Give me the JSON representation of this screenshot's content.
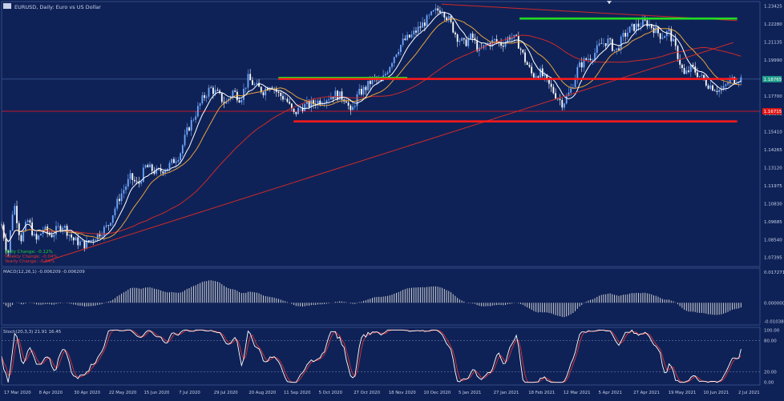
{
  "symbol_header": {
    "text": "EURUSD, Daily:  Euro vs US Dollar"
  },
  "colors": {
    "background": "#0f2257",
    "grid": "#3a5590",
    "candle_up": "#6fa8ff",
    "candle_down": "#ffffff",
    "ma_fast": "#ffffff",
    "ma_mid": "#e8a33d",
    "ma_slow": "#cc2a2a",
    "trendline": "#cc2a2a",
    "support_red": "#ff1a1a",
    "resistance_green": "#22dd22",
    "macd": "#d0d0d0",
    "stoch_main": "#ffffff",
    "stoch_signal": "#e03030",
    "axis_text": "#c8d0e8",
    "price_tag": "#1e9c8a",
    "red_tag": "#e01818"
  },
  "chart_data": {
    "type": "candlestick",
    "main": {
      "y_ticks": [
        "1.23425",
        "1.22280",
        "1.21135",
        "1.19990",
        "1.18845",
        "1.17700",
        "1.16555",
        "1.15410",
        "1.14265",
        "1.13120",
        "1.11975",
        "1.10830",
        "1.09685",
        "1.08540",
        "1.07395"
      ],
      "ylim": [
        1.0682,
        1.2371
      ],
      "current_price_label": "1.18765",
      "red_level_label": "1.16715",
      "levels": [
        {
          "color": "resistance_green",
          "value": 1.2263,
          "from": 0.683,
          "to": 0.97
        },
        {
          "color": "resistance_green",
          "value": 1.1885,
          "from": 0.365,
          "to": 0.535
        },
        {
          "color": "support_red",
          "value": 1.1878,
          "from": 0.365,
          "to": 0.97
        },
        {
          "color": "support_red",
          "value": 1.1607,
          "from": 0.385,
          "to": 0.97
        }
      ],
      "thin_line_value": 1.1672,
      "trendlines": [
        {
          "from": [
            0.055,
            1.071
          ],
          "to": [
            0.965,
            1.211
          ]
        },
        {
          "from": [
            0.58,
            1.2355
          ],
          "to": [
            0.97,
            1.225
          ]
        }
      ],
      "price_path": [
        [
          0.0,
          1.095
        ],
        [
          0.008,
          1.075
        ],
        [
          0.016,
          1.11
        ],
        [
          0.025,
          1.085
        ],
        [
          0.035,
          1.098
        ],
        [
          0.045,
          1.084
        ],
        [
          0.055,
          1.092
        ],
        [
          0.065,
          1.088
        ],
        [
          0.08,
          1.095
        ],
        [
          0.095,
          1.085
        ],
        [
          0.11,
          1.082
        ],
        [
          0.125,
          1.088
        ],
        [
          0.14,
          1.094
        ],
        [
          0.155,
          1.112
        ],
        [
          0.17,
          1.125
        ],
        [
          0.18,
          1.12
        ],
        [
          0.19,
          1.132
        ],
        [
          0.205,
          1.128
        ],
        [
          0.22,
          1.132
        ],
        [
          0.235,
          1.14
        ],
        [
          0.245,
          1.155
        ],
        [
          0.255,
          1.165
        ],
        [
          0.265,
          1.175
        ],
        [
          0.275,
          1.182
        ],
        [
          0.285,
          1.178
        ],
        [
          0.295,
          1.172
        ],
        [
          0.305,
          1.18
        ],
        [
          0.315,
          1.175
        ],
        [
          0.325,
          1.188
        ],
        [
          0.335,
          1.183
        ],
        [
          0.345,
          1.18
        ],
        [
          0.355,
          1.185
        ],
        [
          0.365,
          1.178
        ],
        [
          0.375,
          1.175
        ],
        [
          0.385,
          1.165
        ],
        [
          0.395,
          1.17
        ],
        [
          0.41,
          1.172
        ],
        [
          0.425,
          1.175
        ],
        [
          0.44,
          1.178
        ],
        [
          0.455,
          1.175
        ],
        [
          0.46,
          1.165
        ],
        [
          0.47,
          1.178
        ],
        [
          0.48,
          1.182
        ],
        [
          0.49,
          1.188
        ],
        [
          0.5,
          1.185
        ],
        [
          0.51,
          1.195
        ],
        [
          0.52,
          1.205
        ],
        [
          0.53,
          1.212
        ],
        [
          0.54,
          1.215
        ],
        [
          0.55,
          1.22
        ],
        [
          0.56,
          1.225
        ],
        [
          0.57,
          1.23
        ],
        [
          0.58,
          1.233
        ],
        [
          0.59,
          1.225
        ],
        [
          0.6,
          1.215
        ],
        [
          0.61,
          1.21
        ],
        [
          0.62,
          1.215
        ],
        [
          0.63,
          1.205
        ],
        [
          0.64,
          1.21
        ],
        [
          0.65,
          1.212
        ],
        [
          0.66,
          1.21
        ],
        [
          0.67,
          1.215
        ],
        [
          0.68,
          1.212
        ],
        [
          0.69,
          1.2
        ],
        [
          0.7,
          1.19
        ],
        [
          0.71,
          1.192
        ],
        [
          0.72,
          1.185
        ],
        [
          0.73,
          1.178
        ],
        [
          0.74,
          1.172
        ],
        [
          0.75,
          1.18
        ],
        [
          0.76,
          1.195
        ],
        [
          0.77,
          1.2
        ],
        [
          0.78,
          1.203
        ],
        [
          0.79,
          1.21
        ],
        [
          0.8,
          1.212
        ],
        [
          0.81,
          1.205
        ],
        [
          0.82,
          1.215
        ],
        [
          0.83,
          1.22
        ],
        [
          0.84,
          1.222
        ],
        [
          0.85,
          1.224
        ],
        [
          0.86,
          1.22
        ],
        [
          0.87,
          1.215
        ],
        [
          0.88,
          1.218
        ],
        [
          0.89,
          1.205
        ],
        [
          0.9,
          1.19
        ],
        [
          0.91,
          1.195
        ],
        [
          0.92,
          1.19
        ],
        [
          0.93,
          1.185
        ],
        [
          0.94,
          1.182
        ],
        [
          0.95,
          1.18
        ],
        [
          0.96,
          1.187
        ],
        [
          0.97,
          1.188
        ]
      ]
    },
    "overlays": [
      {
        "label": "Daily Change: -0.12%",
        "color": "#22cc33"
      },
      {
        "label": "Weekly Change: -0.04%",
        "color": "#e03030"
      },
      {
        "label": "Yearly Change: -0.04%",
        "color": "#e03030"
      }
    ],
    "macd": {
      "label": "MACD(12,26,1) -0.006209 -0.006209",
      "y_ticks": [
        "0.017271",
        "0.000000",
        "-0.010383"
      ],
      "ylim": [
        -0.0125,
        0.0195
      ]
    },
    "stoch": {
      "label": "Stoch(20,3,3) 21.91 16.45",
      "y_ticks": [
        "100.00",
        "80.00",
        "20.00",
        "0.00"
      ],
      "ylim": [
        -5,
        105
      ],
      "guides": [
        80,
        20
      ]
    },
    "x_labels": [
      "17 Mar 2020",
      "8 Apr 2020",
      "30 Apr 2020",
      "22 May 2020",
      "15 Jun 2020",
      "7 Jul 2020",
      "29 Jul 2020",
      "20 Aug 2020",
      "11 Sep 2020",
      "5 Oct 2020",
      "27 Oct 2020",
      "18 Nov 2020",
      "10 Dec 2020",
      "5 Jan 2021",
      "27 Jan 2021",
      "18 Feb 2021",
      "12 Mar 2021",
      "5 Apr 2021",
      "27 Apr 2021",
      "19 May 2021",
      "10 Jun 2021",
      "2 Jul 2021"
    ]
  }
}
